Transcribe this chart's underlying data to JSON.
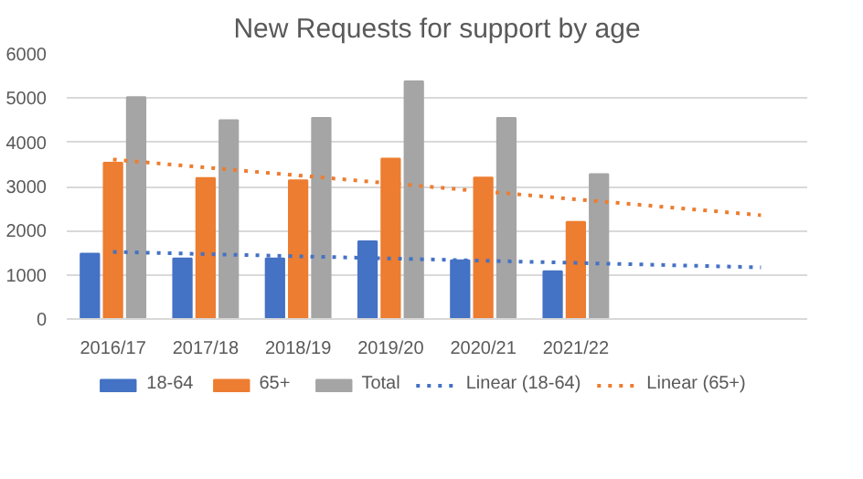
{
  "chart_data": {
    "type": "bar",
    "title": "New Requests for support by age",
    "categories": [
      "2016/17",
      "2017/18",
      "2018/19",
      "2019/20",
      "2020/21",
      "2021/22",
      null,
      null
    ],
    "series": [
      {
        "name": "18-64",
        "color": "#4472c4",
        "values": [
          1480,
          1370,
          1370,
          1760,
          1330,
          1080,
          null,
          null
        ]
      },
      {
        "name": "65+",
        "color": "#ed7d31",
        "values": [
          3540,
          3190,
          3140,
          3630,
          3200,
          2200,
          null,
          null
        ]
      },
      {
        "name": "Total",
        "color": "#a5a5a5",
        "values": [
          5020,
          4500,
          4550,
          5380,
          4550,
          3280,
          null,
          null
        ]
      },
      {
        "name": "Linear (18-64)",
        "type": "line",
        "line_style": "dotted",
        "color": "#4472c4",
        "values": [
          1520,
          1470,
          1420,
          1370,
          1320,
          1270,
          1220,
          1170
        ]
      },
      {
        "name": "Linear (65+)",
        "type": "line",
        "line_style": "dotted",
        "color": "#ed7d31",
        "values": [
          3610,
          3430,
          3250,
          3070,
          2890,
          2710,
          2530,
          2350
        ]
      }
    ],
    "ylim": [
      0,
      6000
    ],
    "yticks": [
      0,
      1000,
      2000,
      3000,
      4000,
      5000,
      6000
    ],
    "grid": "y",
    "legend": "bottom"
  }
}
